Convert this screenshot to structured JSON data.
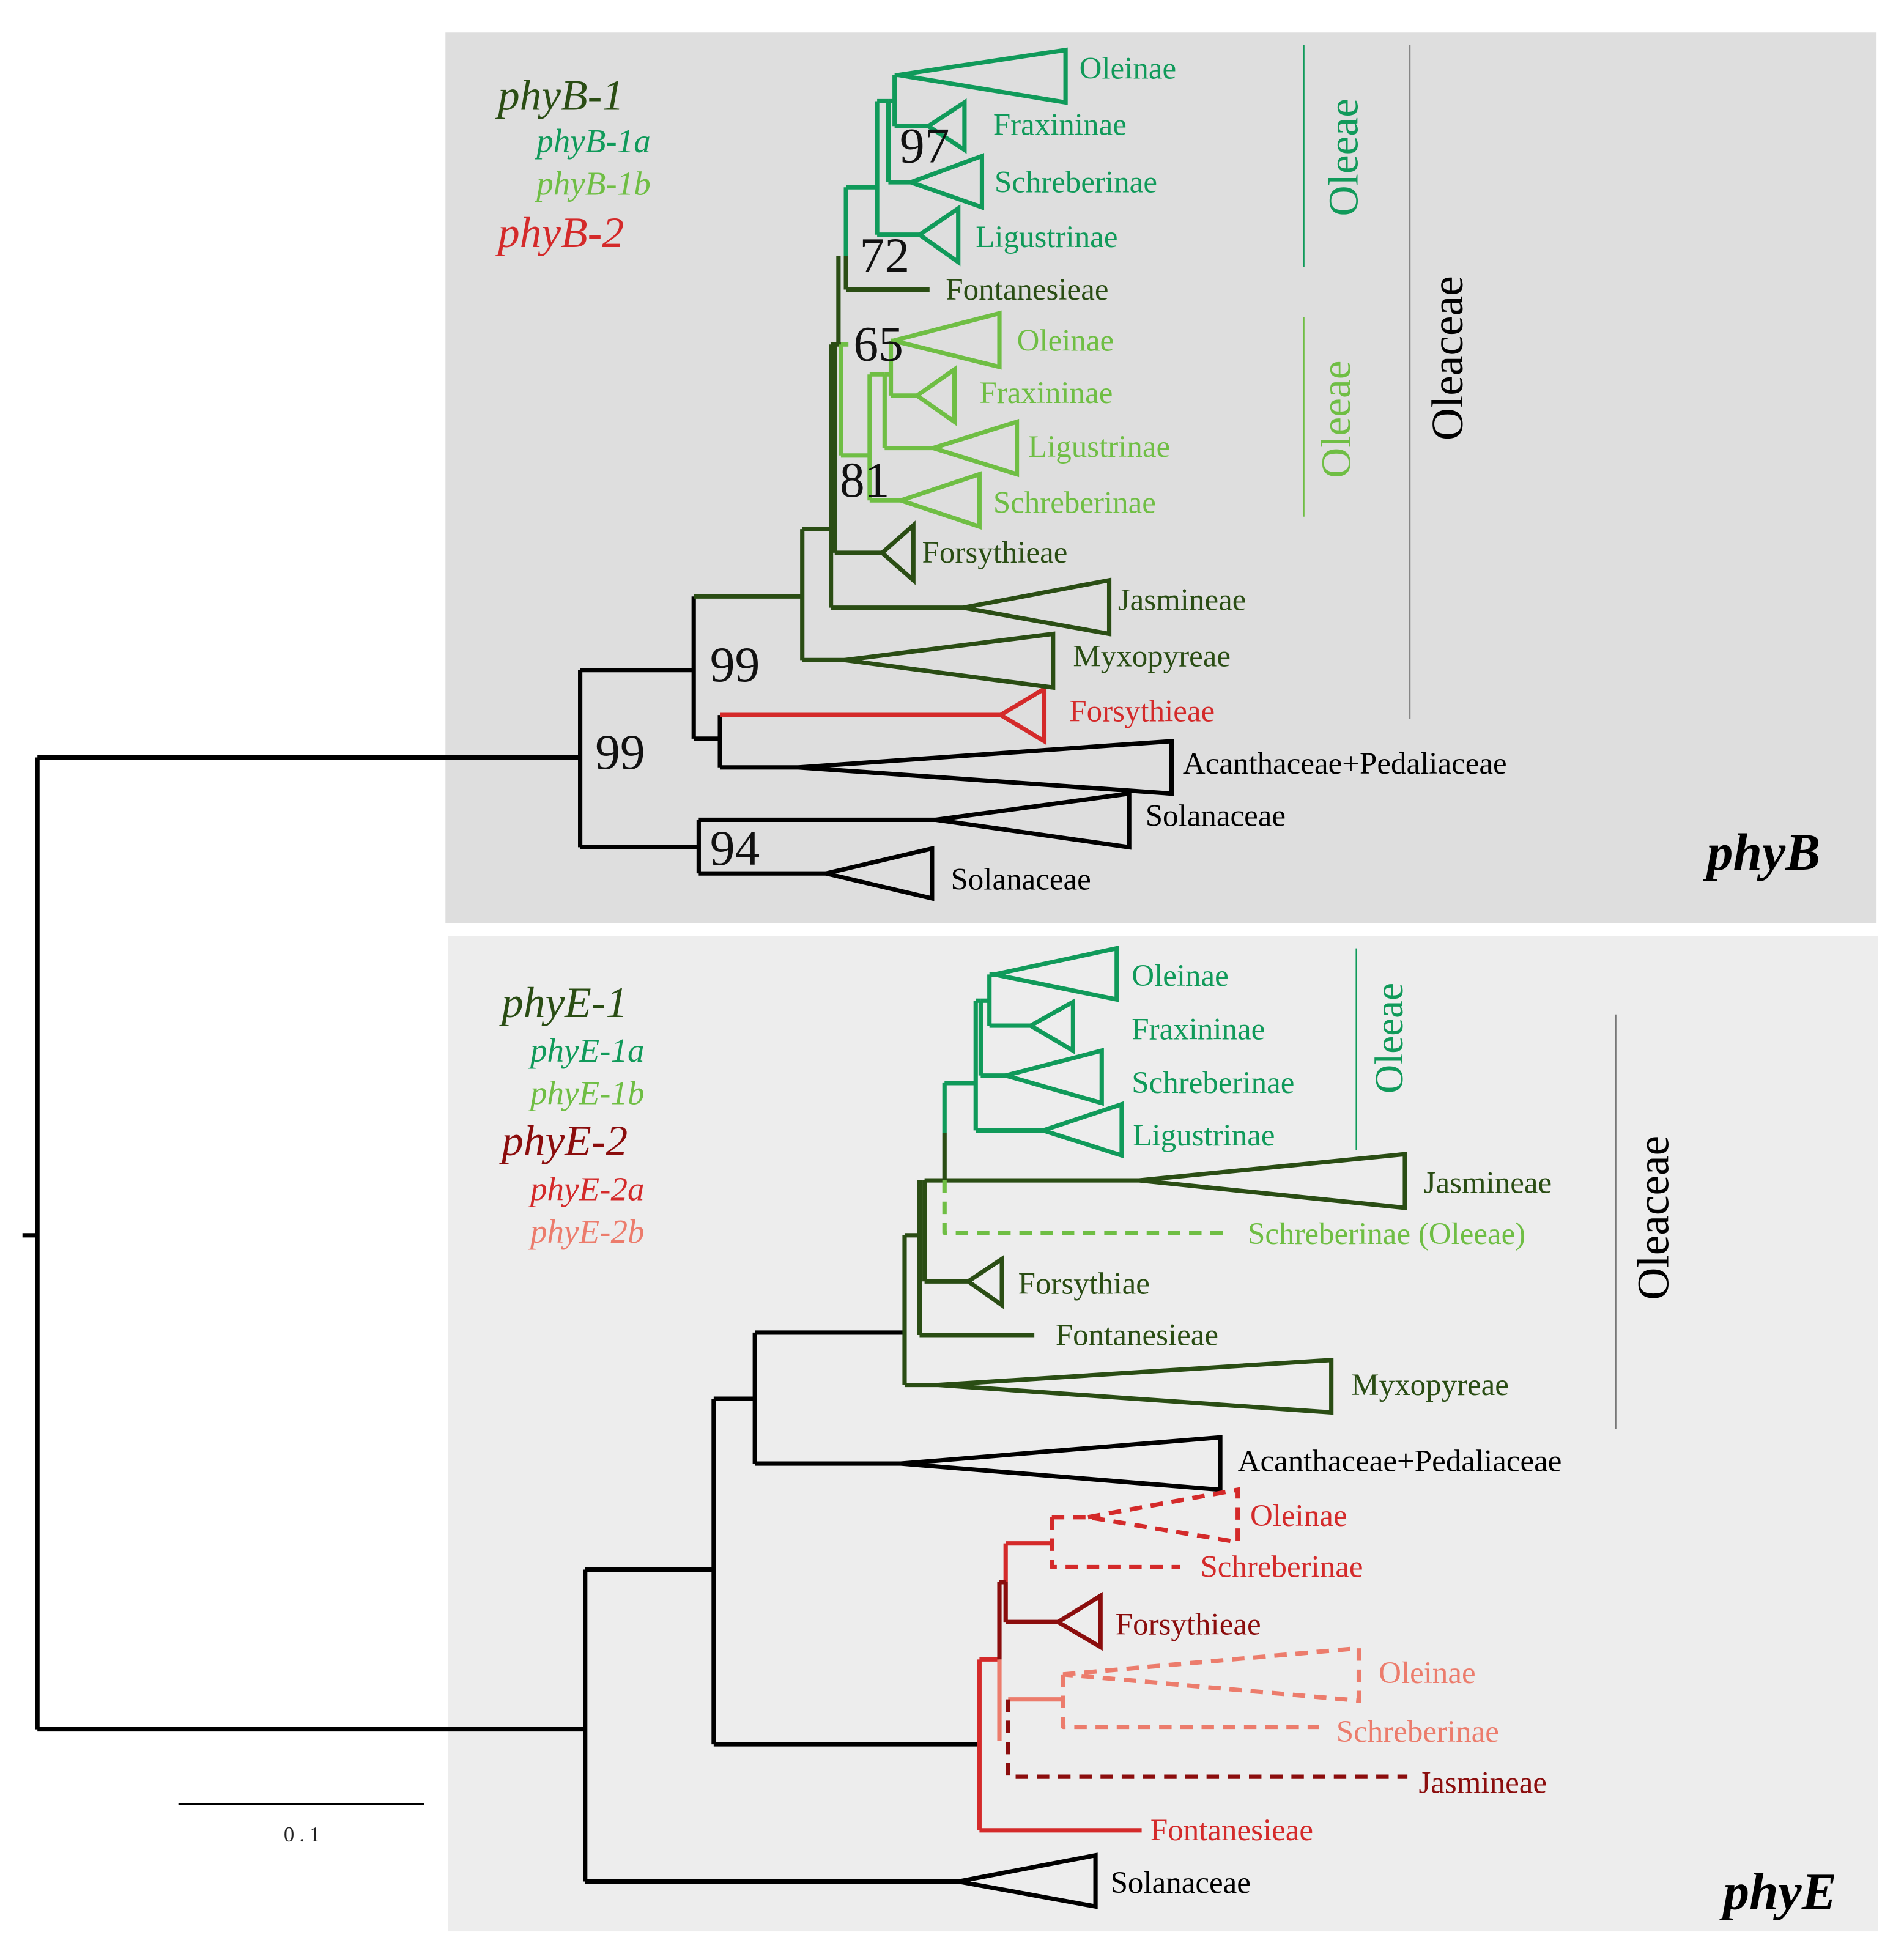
{
  "colors": {
    "black": "#000000",
    "dark_green": "#2a4d14",
    "teal_green": "#109a5a",
    "light_green": "#6fbe44",
    "red": "#d42a2a",
    "dark_red": "#8b0d0d",
    "salmon": "#ec7c6c",
    "panel_phyB": "#dedede",
    "panel_phyE": "#ededed",
    "vline": "#8a8a8a"
  },
  "phyB": {
    "title": "phyB",
    "legend": {
      "phyB_1": "phyB-1",
      "phyB_1a": "phyB-1a",
      "phyB_1b": "phyB-1b",
      "phyB_2": "phyB-2"
    },
    "tips": {
      "oleinae_a": "Oleinae",
      "fraxininae_a": "Fraxininae",
      "schreberinae_a": "Schreberinae",
      "ligustrinae_a": "Ligustrinae",
      "fontanesieae": "Fontanesieae",
      "oleinae_b": "Oleinae",
      "fraxininae_b": "Fraxininae",
      "ligustrinae_b": "Ligustrinae",
      "schreberinae_b": "Schreberinae",
      "forsythieae": "Forsythieae",
      "jasmineae": "Jasmineae",
      "myxopyreae": "Myxopyreae",
      "forsythieae_2": "Forsythieae",
      "acanthaceae": "Acanthaceae+Pedaliaceae",
      "solanaceae_1": "Solanaceae",
      "solanaceae_2": "Solanaceae"
    },
    "bootstrap": {
      "b97": "97",
      "b72": "72",
      "b65": "65",
      "b81": "81",
      "b99a": "99",
      "b99b": "99",
      "b94": "94"
    },
    "brackets": {
      "oleeae_a": "Oleeae",
      "oleeae_b": "Oleeae",
      "oleaceae": "Oleaceae"
    }
  },
  "phyE": {
    "title": "phyE",
    "legend": {
      "phyE_1": "phyE-1",
      "phyE_1a": "phyE-1a",
      "phyE_1b": "phyE-1b",
      "phyE_2": "phyE-2",
      "phyE_2a": "phyE-2a",
      "phyE_2b": "phyE-2b"
    },
    "tips": {
      "oleinae_a": "Oleinae",
      "fraxininae_a": "Fraxininae",
      "schreberinae_a": "Schreberinae",
      "ligustrinae_a": "Ligustrinae",
      "jasmineae": "Jasmineae",
      "schreberinae_oleeae": "Schreberinae (Oleeae)",
      "forsythiae": "Forsythiae",
      "fontanesieae": "Fontanesieae",
      "myxopyreae": "Myxopyreae",
      "acanthaceae": "Acanthaceae+Pedaliaceae",
      "oleinae_2a": "Oleinae",
      "schreberinae_2a": "Schreberinae",
      "forsythieae_2": "Forsythieae",
      "oleinae_2b": "Oleinae",
      "schreberinae_2b": "Schreberinae",
      "jasmineae_2": "Jasmineae",
      "fontanesieae_2": "Fontanesieae",
      "solanaceae": "Solanaceae"
    },
    "brackets": {
      "oleeae": "Oleeae",
      "oleaceae": "Oleaceae"
    }
  },
  "scale": {
    "label": "0.1"
  }
}
